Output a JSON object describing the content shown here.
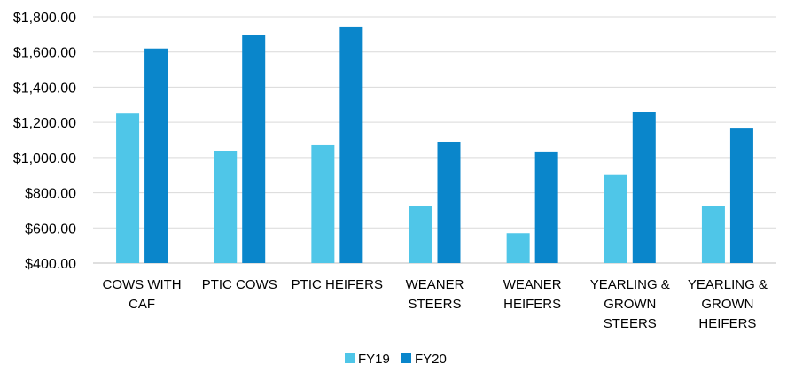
{
  "chart_data": {
    "type": "bar",
    "title": "",
    "xlabel": "",
    "ylabel": "",
    "ylim": [
      400,
      1800
    ],
    "yticks": [
      "$400.00",
      "$600.00",
      "$800.00",
      "$1,000.00",
      "$1,200.00",
      "$1,400.00",
      "$1,600.00",
      "$1,800.00"
    ],
    "grid": true,
    "legend_position": "bottom",
    "categories": [
      [
        "COWS WITH",
        "CAF"
      ],
      [
        "PTIC COWS"
      ],
      [
        "PTIC HEIFERS"
      ],
      [
        "WEANER",
        "STEERS"
      ],
      [
        "WEANER",
        "HEIFERS"
      ],
      [
        "YEARLING &",
        "GROWN",
        "STEERS"
      ],
      [
        "YEARLING &",
        "GROWN",
        "HEIFERS"
      ]
    ],
    "series": [
      {
        "name": "FY19",
        "color": "#4FC6E8",
        "values": [
          1250,
          1035,
          1070,
          725,
          570,
          900,
          725
        ]
      },
      {
        "name": "FY20",
        "color": "#0A86CB",
        "values": [
          1620,
          1695,
          1745,
          1090,
          1030,
          1260,
          1165
        ]
      }
    ]
  }
}
